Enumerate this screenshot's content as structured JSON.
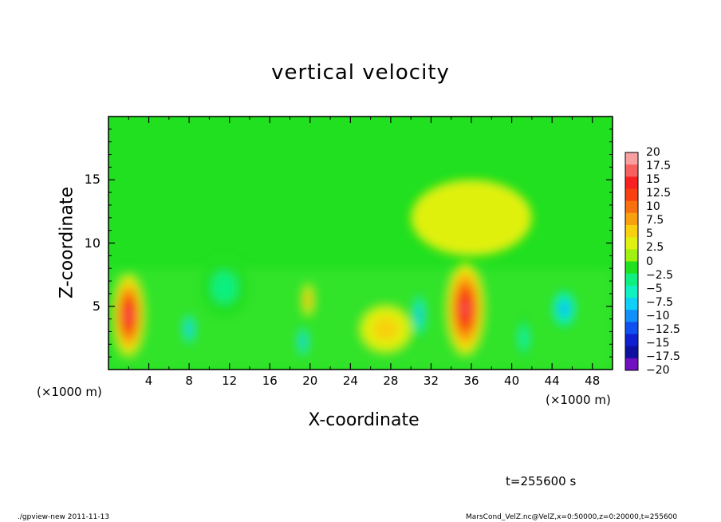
{
  "chart_data": {
    "type": "heatmap",
    "title": "vertical velocity",
    "xlabel": "X-coordinate",
    "ylabel": "Z-coordinate",
    "x_unit_label": "(×1000 m)",
    "x_ticks": [
      4,
      8,
      12,
      16,
      20,
      24,
      28,
      32,
      36,
      40,
      44,
      48
    ],
    "y_ticks": [
      5,
      10,
      15
    ],
    "xlim": [
      0,
      50
    ],
    "ylim": [
      0,
      20
    ],
    "colorbar": {
      "levels": [
        "20",
        "17.5",
        "15",
        "12.5",
        "10",
        "7.5",
        "5",
        "2.5",
        "0",
        "−2.5",
        "−5",
        "−7.5",
        "−10",
        "−12.5",
        "−15",
        "−17.5",
        "−20"
      ],
      "colors": [
        "#f8a0a0",
        "#f86060",
        "#f82020",
        "#f84010",
        "#f87010",
        "#f8a010",
        "#f8d010",
        "#e0f010",
        "#a0f010",
        "#20e020",
        "#10f080",
        "#10f0c0",
        "#10d0f8",
        "#1090f8",
        "#1050f0",
        "#1020d0",
        "#1010a0",
        "#7010c0"
      ]
    },
    "features": [
      {
        "x": 2,
        "z": 4.3,
        "w": 16,
        "rx": 1.5,
        "rz": 3.2
      },
      {
        "x": 8,
        "z": 3.2,
        "w": -12,
        "rx": 0.6,
        "rz": 1.4
      },
      {
        "x": 19.3,
        "z": 2.2,
        "w": -12,
        "rx": 0.5,
        "rz": 1.4
      },
      {
        "x": 19.8,
        "z": 5.5,
        "w": 6,
        "rx": 0.5,
        "rz": 1.2
      },
      {
        "x": 27.5,
        "z": 3.2,
        "w": 4,
        "rx": 2.5,
        "rz": 1.8
      },
      {
        "x": 30.8,
        "z": 4.3,
        "w": -12,
        "rx": 0.6,
        "rz": 2.0
      },
      {
        "x": 35.4,
        "z": 4.8,
        "w": 17,
        "rx": 1.8,
        "rz": 3.6
      },
      {
        "x": 41.2,
        "z": 2.5,
        "w": -6,
        "rx": 0.7,
        "rz": 1.8
      },
      {
        "x": 45.2,
        "z": 4.8,
        "w": -12,
        "rx": 1.3,
        "rz": 1.7
      },
      {
        "x": 11.5,
        "z": 6.5,
        "w": -4,
        "rx": 2.5,
        "rz": 2.5
      },
      {
        "x": 36,
        "z": 12,
        "w": 2.5,
        "rx": 6,
        "rz": 3
      }
    ],
    "time_label": "t=255600 s"
  },
  "footer": {
    "left": "./gpview-new  2011-11-13",
    "right": "MarsCond_VelZ.nc@VelZ,x=0:50000,z=0:20000,t=255600"
  }
}
